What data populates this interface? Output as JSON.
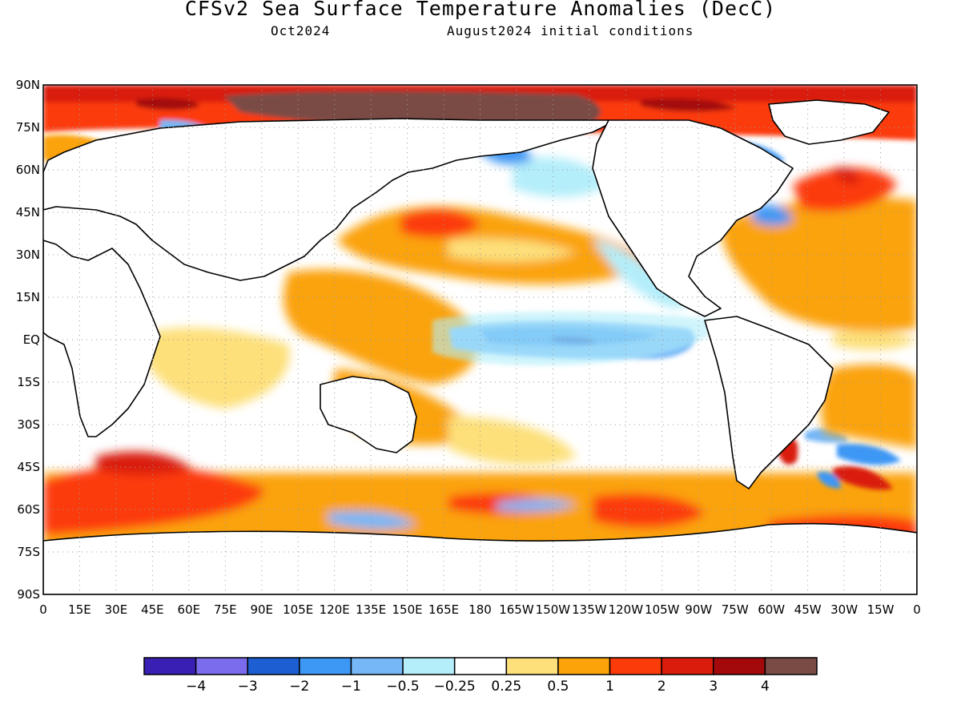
{
  "title": "CFSv2 Sea Surface Temperature Anomalies (DecC)",
  "valid_month": "Oct2024",
  "initial_conditions": "August2024 initial conditions",
  "map": {
    "lat_labels": [
      "90N",
      "75N",
      "60N",
      "45N",
      "30N",
      "15N",
      "EQ",
      "15S",
      "30S",
      "45S",
      "60S",
      "75S",
      "90S"
    ],
    "lon_labels": [
      "0",
      "15E",
      "30E",
      "45E",
      "60E",
      "75E",
      "90E",
      "105E",
      "120E",
      "135E",
      "150E",
      "165E",
      "180",
      "165W",
      "150W",
      "135W",
      "120W",
      "105W",
      "90W",
      "75W",
      "60W",
      "45W",
      "30W",
      "15W",
      "0"
    ],
    "grid": "dotted",
    "land_color": "#ffffff"
  },
  "colorbar": {
    "colors": [
      "#3a1fb4",
      "#7a6cec",
      "#1d5fd2",
      "#3d97f5",
      "#76b7f7",
      "#b3eefa",
      "#ffffff",
      "#fde07a",
      "#fba309",
      "#fc3b0a",
      "#d91c0b",
      "#a3090b",
      "#7a4b44"
    ],
    "labels": [
      "−4",
      "−3",
      "−2",
      "−1",
      "−0.5",
      "−0.25",
      "0.25",
      "0.5",
      "1",
      "2",
      "3",
      "4"
    ]
  }
}
